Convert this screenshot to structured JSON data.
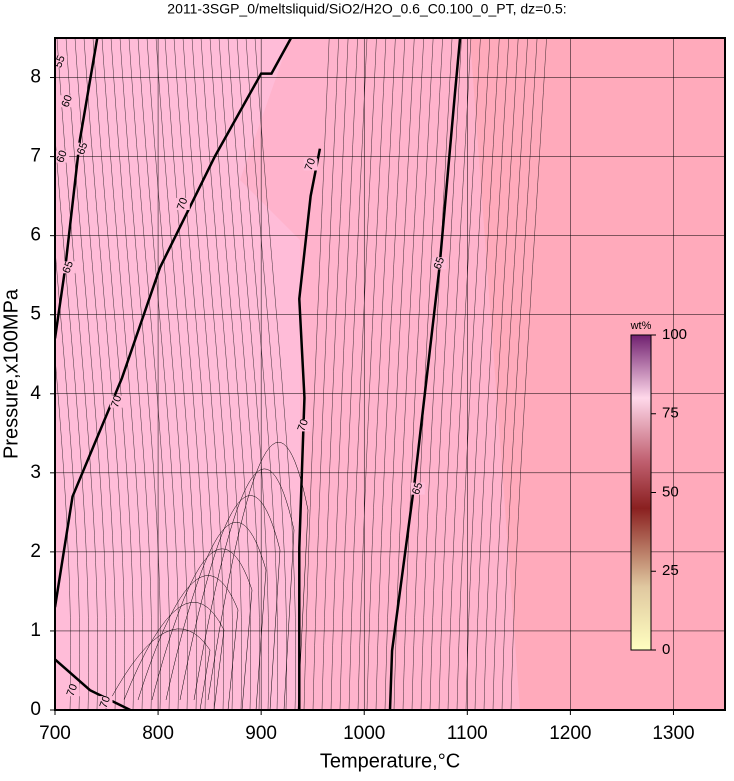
{
  "chart_data": {
    "type": "contour",
    "title": "2011-3SGP_0/meltsliquid/SiO2/H2O_0.6_C0.100_0_PT, dz=0.5:",
    "x_label": "Temperature,°C",
    "y_label": "Pressure,x100MPa",
    "xlim": [
      700,
      1350
    ],
    "ylim": [
      0,
      8.5
    ],
    "xticks": [
      700,
      800,
      900,
      1000,
      1100,
      1200,
      1300
    ],
    "yticks": [
      0,
      1,
      2,
      3,
      4,
      5,
      6,
      7,
      8
    ],
    "grid": true,
    "contours": [
      {
        "x": [
          700,
          717,
          765,
          802,
          855,
          900,
          910,
          929
        ],
        "y": [
          1.3,
          2.7,
          4.2,
          5.6,
          7.0,
          8.05,
          8.05,
          8.5
        ]
      },
      {
        "x": [
          937,
          937,
          942,
          937,
          948,
          957
        ],
        "y": [
          0,
          2.05,
          3.95,
          5.2,
          6.5,
          7.1
        ]
      },
      {
        "x": [
          1025,
          1027,
          1049,
          1073,
          1088,
          1093
        ],
        "y": [
          0,
          0.75,
          2.9,
          5.6,
          7.8,
          8.5
        ]
      },
      {
        "x": [
          741,
          724,
          710,
          700
        ],
        "y": [
          8.5,
          7.2,
          5.6,
          4.7
        ]
      },
      {
        "x": [
          700,
          734,
          773
        ],
        "y": [
          0.64,
          0.25,
          0
        ]
      }
    ],
    "contour_labels": [
      {
        "text": "55",
        "x": 705,
        "y": 8.2
      },
      {
        "text": "60",
        "x": 712,
        "y": 7.7
      },
      {
        "text": "60",
        "x": 707,
        "y": 7.0
      },
      {
        "text": "65",
        "x": 727,
        "y": 7.1
      },
      {
        "text": "65",
        "x": 713,
        "y": 5.6
      },
      {
        "text": "70",
        "x": 824,
        "y": 6.4
      },
      {
        "text": "70",
        "x": 760,
        "y": 3.9
      },
      {
        "text": "70",
        "x": 941,
        "y": 3.6
      },
      {
        "text": "70",
        "x": 948,
        "y": 6.9
      },
      {
        "text": "65",
        "x": 1073,
        "y": 5.65
      },
      {
        "text": "65",
        "x": 1052,
        "y": 2.8
      },
      {
        "text": "70",
        "x": 717,
        "y": 0.25
      },
      {
        "text": "70",
        "x": 749,
        "y": 0.1
      }
    ],
    "colorbar": {
      "label": "wt%",
      "lim": [
        0,
        100
      ],
      "ticks": [
        0,
        25,
        50,
        75,
        100
      ]
    }
  }
}
